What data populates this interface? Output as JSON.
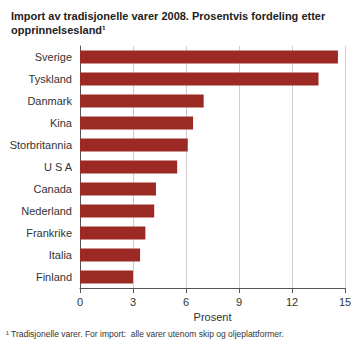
{
  "chart_data": {
    "type": "bar",
    "title": "Import av tradisjonelle varer 2008. Prosentvis fordeling etter opprinnelsesland¹",
    "x_label": "Prosent",
    "annotations": [
      "¹ Tradisjonelle varer. For import:  alle varer utenom skip og oljeplattformer."
    ],
    "categories": [
      "Sverige",
      "Tyskland",
      "Danmark",
      "Kina",
      "Storbritannia",
      "U S A",
      "Canada",
      "Nederland",
      "Frankrike",
      "Italia",
      "Finland"
    ],
    "values": [
      14.6,
      13.5,
      7.0,
      6.4,
      6.1,
      5.5,
      4.3,
      4.2,
      3.7,
      3.4,
      3.0
    ],
    "color": "#9c2a24",
    "orientation": "horizontal",
    "xlim": [
      0,
      15
    ],
    "xticks": [
      0,
      3,
      6,
      9,
      12,
      15
    ],
    "grid": true
  }
}
